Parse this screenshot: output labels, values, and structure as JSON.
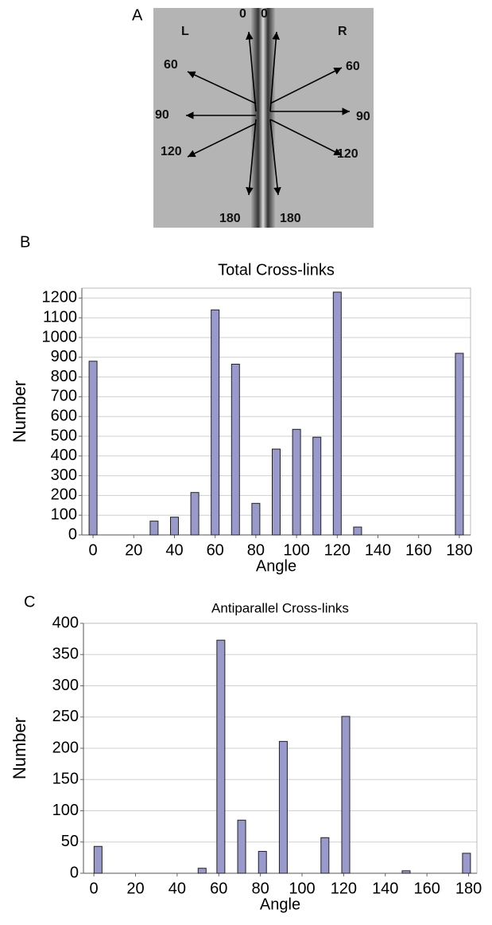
{
  "panel_a": {
    "label": "A",
    "annotations": [
      "L",
      "R",
      "0",
      "0",
      "60",
      "60",
      "90",
      "90",
      "120",
      "120",
      "180",
      "180"
    ]
  },
  "chart_data": [
    {
      "type": "bar",
      "panel_label": "B",
      "title": "Total Cross-links",
      "x_label": "Angle",
      "y_label": "Number",
      "x": [
        0,
        10,
        20,
        30,
        40,
        50,
        60,
        70,
        80,
        90,
        100,
        110,
        120,
        130,
        140,
        150,
        160,
        170,
        180
      ],
      "values": [
        880,
        0,
        0,
        70,
        90,
        215,
        1140,
        865,
        160,
        435,
        535,
        495,
        1230,
        40,
        0,
        0,
        0,
        0,
        920
      ],
      "color": "#9999cc",
      "xlim": [
        -5.5,
        185.5
      ],
      "xticks": [
        0,
        20,
        40,
        60,
        80,
        100,
        120,
        140,
        160,
        180
      ],
      "ylim": [
        0,
        1250
      ],
      "yticks": [
        0,
        100,
        200,
        300,
        400,
        500,
        600,
        700,
        800,
        900,
        1000,
        1100,
        1200
      ],
      "grid": true
    },
    {
      "type": "bar",
      "panel_label": "C",
      "title": "Antiparallel Cross-links",
      "x_label": "Angle",
      "y_label": "Number",
      "x": [
        2,
        52,
        61,
        71,
        81,
        91,
        111,
        121,
        150,
        179
      ],
      "values": [
        43,
        8,
        373,
        85,
        35,
        211,
        57,
        251,
        4,
        32
      ],
      "color": "#9999cc",
      "xlim": [
        -5,
        184
      ],
      "xticks": [
        0,
        20,
        40,
        60,
        80,
        100,
        120,
        140,
        160,
        180
      ],
      "ylim": [
        0,
        400
      ],
      "yticks": [
        0,
        50,
        100,
        150,
        200,
        250,
        300,
        350,
        400
      ],
      "grid": true
    }
  ]
}
